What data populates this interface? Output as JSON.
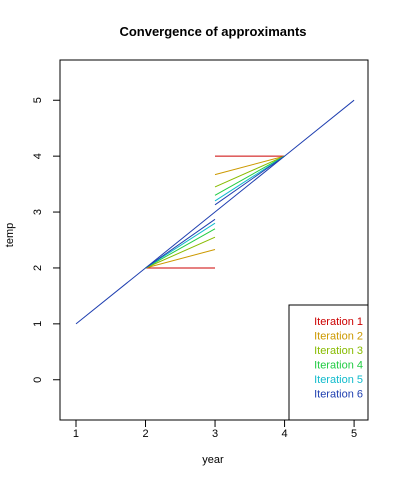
{
  "chart_data": {
    "type": "line",
    "title": "Convergence of approximants",
    "xlabel": "year",
    "ylabel": "temp",
    "xlim": [
      0.77,
      5.2
    ],
    "ylim": [
      -0.72,
      5.72
    ],
    "x_ticks": [
      "1",
      "2",
      "3",
      "4",
      "5"
    ],
    "y_ticks": [
      "0",
      "1",
      "2",
      "3",
      "4",
      "5"
    ],
    "grid": false,
    "legend_position": "bottom-right",
    "reference_line": {
      "x": [
        1,
        2,
        3,
        4,
        5
      ],
      "y": [
        1,
        2,
        3,
        4,
        5
      ],
      "color": "#1f3fb0"
    },
    "series": [
      {
        "name": "Iteration 1",
        "color": "#cc0000",
        "segments": [
          {
            "x": [
              2,
              3
            ],
            "y": [
              2.0,
              2.0
            ]
          },
          {
            "x": [
              3,
              4
            ],
            "y": [
              4.0,
              4.0
            ]
          }
        ]
      },
      {
        "name": "Iteration 2",
        "color": "#cc9900",
        "segments": [
          {
            "x": [
              2,
              3
            ],
            "y": [
              2.0,
              2.33
            ]
          },
          {
            "x": [
              3,
              4
            ],
            "y": [
              3.67,
              4.0
            ]
          }
        ]
      },
      {
        "name": "Iteration 3",
        "color": "#88bb00",
        "segments": [
          {
            "x": [
              2,
              3
            ],
            "y": [
              2.0,
              2.55
            ]
          },
          {
            "x": [
              3,
              4
            ],
            "y": [
              3.45,
              4.0
            ]
          }
        ]
      },
      {
        "name": "Iteration 4",
        "color": "#22cc44",
        "segments": [
          {
            "x": [
              2,
              3
            ],
            "y": [
              2.0,
              2.7
            ]
          },
          {
            "x": [
              3,
              4
            ],
            "y": [
              3.3,
              4.0
            ]
          }
        ]
      },
      {
        "name": "Iteration 5",
        "color": "#11bbcc",
        "segments": [
          {
            "x": [
              2,
              3
            ],
            "y": [
              2.0,
              2.8
            ]
          },
          {
            "x": [
              3,
              4
            ],
            "y": [
              3.2,
              4.0
            ]
          }
        ]
      },
      {
        "name": "Iteration 6",
        "color": "#1f3fb0",
        "segments": [
          {
            "x": [
              2,
              3
            ],
            "y": [
              2.0,
              2.87
            ]
          },
          {
            "x": [
              3,
              4
            ],
            "y": [
              3.13,
              4.0
            ]
          }
        ]
      }
    ]
  }
}
